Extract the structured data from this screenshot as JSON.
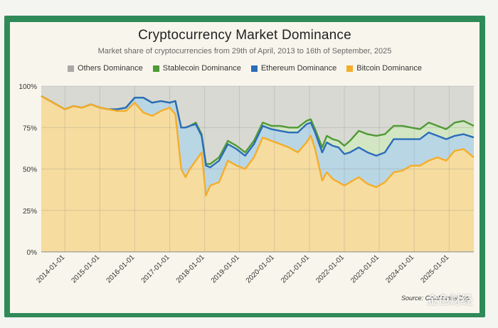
{
  "title": "Cryptocurrency Market Dominance",
  "subtitle": "Market share of cryptocurrencies from 29th of April, 2013 to 16th of September, 2025",
  "source": "Source: CoinMarketCap",
  "watermark": "金色财经",
  "colors": {
    "others": "#d9d9d3",
    "stablecoin_fill": "#d3e6c4",
    "ethereum_fill": "#b9d6e5",
    "bitcoin_fill": "#f6dc9f",
    "stablecoin_line": "#4f9a35",
    "ethereum_line": "#2a6db8",
    "bitcoin_line": "#f5ad2a",
    "others_swatch": "#a9a9a9"
  },
  "chart_data": {
    "type": "area",
    "title": "Cryptocurrency Market Dominance",
    "subtitle": "Market share of cryptocurrencies from 29th of April, 2013 to 16th of September, 2025",
    "ylim": [
      0,
      100
    ],
    "y_ticks": [
      "0%",
      "25%",
      "50%",
      "75%",
      "100%"
    ],
    "x_ticks": [
      "2014-01-01",
      "2015-01-01",
      "2016-01-01",
      "2017-01-01",
      "2018-01-01",
      "2019-01-01",
      "2020-01-01",
      "2021-01-01",
      "2022-01-01",
      "2023-01-01",
      "2024-01-01",
      "2025-01-01"
    ],
    "legend": [
      "Others Dominance",
      "Stablecoin Dominance",
      "Ethereum Dominance",
      "Bitcoin Dominance"
    ],
    "legend_position": "top",
    "stacked": true,
    "x": [
      "2013-04-29",
      "2013-07-01",
      "2013-10-01",
      "2014-01-01",
      "2014-04-01",
      "2014-07-01",
      "2014-10-01",
      "2015-01-01",
      "2015-04-01",
      "2015-07-01",
      "2015-10-01",
      "2016-01-01",
      "2016-04-01",
      "2016-07-01",
      "2016-10-01",
      "2017-01-01",
      "2017-03-01",
      "2017-05-01",
      "2017-06-15",
      "2017-08-01",
      "2017-10-01",
      "2017-12-01",
      "2018-01-15",
      "2018-03-01",
      "2018-06-01",
      "2018-09-01",
      "2018-12-01",
      "2019-03-01",
      "2019-06-01",
      "2019-09-01",
      "2019-12-01",
      "2020-03-01",
      "2020-06-01",
      "2020-09-01",
      "2020-12-01",
      "2021-01-15",
      "2021-03-01",
      "2021-05-15",
      "2021-07-01",
      "2021-09-01",
      "2021-11-01",
      "2022-01-01",
      "2022-03-01",
      "2022-06-01",
      "2022-09-01",
      "2022-12-01",
      "2023-03-01",
      "2023-06-01",
      "2023-09-01",
      "2023-12-01",
      "2024-03-01",
      "2024-06-01",
      "2024-09-01",
      "2024-12-01",
      "2025-03-01",
      "2025-06-01",
      "2025-09-16"
    ],
    "series": [
      {
        "name": "Bitcoin Dominance",
        "values": [
          94,
          92,
          89,
          86,
          88,
          87,
          89,
          87,
          86,
          85,
          85,
          90,
          84,
          82,
          85,
          87,
          83,
          50,
          45,
          50,
          55,
          60,
          34,
          40,
          42,
          55,
          52,
          50,
          57,
          69,
          67,
          65,
          63,
          60,
          66,
          70,
          62,
          43,
          48,
          44,
          42,
          40,
          42,
          45,
          41,
          39,
          42,
          48,
          49,
          52,
          52,
          55,
          57,
          55,
          61,
          62,
          57
        ]
      },
      {
        "name": "Ethereum Dominance",
        "values": [
          0,
          0,
          0,
          0,
          0,
          0,
          0,
          0,
          0,
          1,
          2,
          3,
          9,
          8,
          6,
          3,
          8,
          25,
          30,
          26,
          22,
          10,
          18,
          11,
          13,
          10,
          10,
          8,
          8,
          7,
          7,
          8,
          9,
          12,
          11,
          8,
          10,
          17,
          18,
          20,
          21,
          19,
          18,
          18,
          19,
          19,
          18,
          20,
          19,
          16,
          16,
          17,
          13,
          13,
          9,
          9,
          12
        ]
      },
      {
        "name": "Stablecoin Dominance",
        "values": [
          0,
          0,
          0,
          0,
          0,
          0,
          0,
          0,
          0,
          0,
          0,
          0,
          0,
          0,
          0,
          0,
          0,
          0,
          0,
          0,
          1,
          1,
          1,
          2,
          2,
          2,
          2,
          2,
          2,
          2,
          2,
          3,
          3,
          3,
          2,
          2,
          2,
          3,
          4,
          4,
          4,
          5,
          7,
          10,
          11,
          12,
          11,
          8,
          8,
          7,
          6,
          6,
          6,
          6,
          8,
          8,
          7
        ]
      }
    ]
  }
}
